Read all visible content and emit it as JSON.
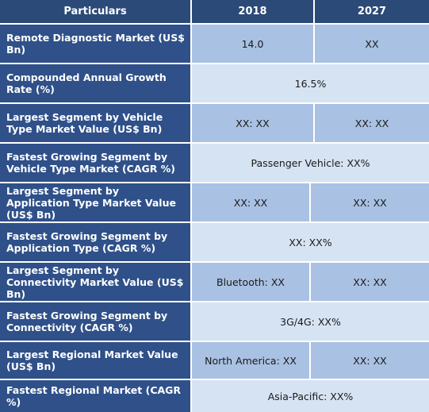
{
  "header": {
    "particulars": "Particulars",
    "year1": "2018",
    "year2": "2027"
  },
  "rows": [
    {
      "label": "Remote Diagnostic Market (US$ Bn)",
      "v2018": "14.0",
      "v2027": "XX"
    },
    {
      "label": "Compounded Annual Growth Rate (%)",
      "merged": "16.5%"
    },
    {
      "label": "Largest Segment by Vehicle Type Market Value (US$ Bn)",
      "v2018": "XX: XX",
      "v2027": "XX: XX"
    },
    {
      "label": "Fastest Growing Segment by Vehicle Type Market (CAGR %)",
      "merged": "Passenger Vehicle: XX%"
    },
    {
      "label": "Largest Segment by Application Type Market Value (US$ Bn)",
      "v2018": "XX: XX",
      "v2027": "XX: XX"
    },
    {
      "label": "Fastest Growing Segment by Application Type (CAGR %)",
      "merged": "XX: XX%"
    },
    {
      "label": "Largest Segment by Connectivity Market Value (US$ Bn)",
      "v2018": "Bluetooth: XX",
      "v2027": "XX: XX"
    },
    {
      "label": "Fastest Growing Segment by Connectivity (CAGR %)",
      "merged": "3G/4G: XX%"
    },
    {
      "label": "Largest Regional Market Value (US$ Bn)",
      "v2018": "North America: XX",
      "v2027": "XX: XX"
    },
    {
      "label": "Fastest Regional Market (CAGR %)",
      "merged": "Asia-Pacific: XX%"
    }
  ]
}
